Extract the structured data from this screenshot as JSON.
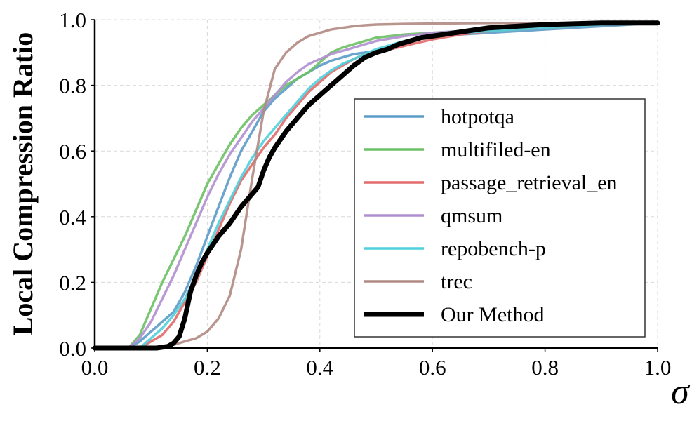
{
  "chart_data": {
    "type": "line",
    "title": "",
    "xlabel": "σ",
    "ylabel": "Local Compression Ratio",
    "xlim": [
      0.0,
      1.0
    ],
    "ylim": [
      0.0,
      1.0
    ],
    "xticks": [
      "0.0",
      "0.2",
      "0.4",
      "0.6",
      "0.8",
      "1.0"
    ],
    "yticks": [
      "0.0",
      "0.2",
      "0.4",
      "0.6",
      "0.8",
      "1.0"
    ],
    "grid": true,
    "legend_position": "center-right",
    "series": [
      {
        "name": "hotpotqa",
        "color": "#5b9bc8",
        "x": [
          0.0,
          0.06,
          0.08,
          0.1,
          0.12,
          0.14,
          0.16,
          0.18,
          0.2,
          0.22,
          0.24,
          0.26,
          0.28,
          0.3,
          0.32,
          0.34,
          0.36,
          0.38,
          0.4,
          0.42,
          0.44,
          0.46,
          0.48,
          0.5,
          0.55,
          0.6,
          0.65,
          0.7,
          0.75,
          0.8,
          0.9,
          1.0
        ],
        "y": [
          0.0,
          0.0,
          0.02,
          0.05,
          0.08,
          0.11,
          0.17,
          0.25,
          0.34,
          0.43,
          0.52,
          0.6,
          0.66,
          0.72,
          0.76,
          0.79,
          0.82,
          0.84,
          0.86,
          0.875,
          0.885,
          0.895,
          0.9,
          0.905,
          0.93,
          0.95,
          0.955,
          0.96,
          0.965,
          0.97,
          0.98,
          0.99
        ]
      },
      {
        "name": "multifiled-en",
        "color": "#6cc064",
        "x": [
          0.0,
          0.06,
          0.08,
          0.1,
          0.12,
          0.14,
          0.16,
          0.18,
          0.2,
          0.22,
          0.24,
          0.26,
          0.28,
          0.3,
          0.32,
          0.34,
          0.36,
          0.38,
          0.4,
          0.42,
          0.44,
          0.46,
          0.48,
          0.5,
          0.55,
          0.6,
          0.65,
          0.7,
          0.75,
          0.8,
          0.9,
          1.0
        ],
        "y": [
          0.0,
          0.0,
          0.04,
          0.12,
          0.2,
          0.27,
          0.34,
          0.42,
          0.5,
          0.56,
          0.62,
          0.67,
          0.71,
          0.74,
          0.77,
          0.8,
          0.82,
          0.84,
          0.87,
          0.9,
          0.915,
          0.925,
          0.935,
          0.945,
          0.955,
          0.96,
          0.965,
          0.97,
          0.975,
          0.98,
          0.985,
          0.99
        ]
      },
      {
        "name": "passage_retrieval_en",
        "color": "#e26a6a",
        "x": [
          0.0,
          0.08,
          0.1,
          0.12,
          0.14,
          0.16,
          0.18,
          0.2,
          0.22,
          0.24,
          0.26,
          0.28,
          0.3,
          0.32,
          0.34,
          0.36,
          0.38,
          0.4,
          0.42,
          0.44,
          0.46,
          0.48,
          0.5,
          0.55,
          0.6,
          0.65,
          0.7,
          0.75,
          0.8,
          0.9,
          1.0
        ],
        "y": [
          0.0,
          0.0,
          0.02,
          0.04,
          0.08,
          0.14,
          0.2,
          0.28,
          0.36,
          0.44,
          0.51,
          0.56,
          0.61,
          0.65,
          0.7,
          0.74,
          0.78,
          0.81,
          0.84,
          0.86,
          0.88,
          0.895,
          0.9,
          0.92,
          0.94,
          0.955,
          0.965,
          0.97,
          0.975,
          0.985,
          0.99
        ]
      },
      {
        "name": "qmsum",
        "color": "#b08fd0",
        "x": [
          0.0,
          0.06,
          0.08,
          0.1,
          0.12,
          0.14,
          0.16,
          0.18,
          0.2,
          0.22,
          0.24,
          0.26,
          0.28,
          0.3,
          0.32,
          0.34,
          0.36,
          0.38,
          0.4,
          0.42,
          0.44,
          0.46,
          0.48,
          0.5,
          0.55,
          0.6,
          0.65,
          0.7,
          0.75,
          0.8,
          0.9,
          1.0
        ],
        "y": [
          0.0,
          0.0,
          0.03,
          0.08,
          0.15,
          0.22,
          0.3,
          0.38,
          0.46,
          0.53,
          0.59,
          0.64,
          0.69,
          0.73,
          0.77,
          0.81,
          0.84,
          0.865,
          0.88,
          0.895,
          0.905,
          0.915,
          0.925,
          0.935,
          0.95,
          0.96,
          0.965,
          0.97,
          0.975,
          0.98,
          0.985,
          0.99
        ]
      },
      {
        "name": "repobench-p",
        "color": "#4fd0dc",
        "x": [
          0.0,
          0.08,
          0.1,
          0.12,
          0.14,
          0.16,
          0.18,
          0.2,
          0.22,
          0.24,
          0.26,
          0.28,
          0.3,
          0.32,
          0.34,
          0.36,
          0.38,
          0.4,
          0.42,
          0.44,
          0.46,
          0.48,
          0.5,
          0.55,
          0.6,
          0.65,
          0.7,
          0.75,
          0.8,
          0.9,
          1.0
        ],
        "y": [
          0.0,
          0.0,
          0.03,
          0.06,
          0.1,
          0.15,
          0.22,
          0.3,
          0.38,
          0.45,
          0.52,
          0.58,
          0.63,
          0.67,
          0.71,
          0.75,
          0.79,
          0.82,
          0.845,
          0.865,
          0.88,
          0.895,
          0.91,
          0.935,
          0.95,
          0.96,
          0.965,
          0.97,
          0.975,
          0.985,
          0.99
        ]
      },
      {
        "name": "trec",
        "color": "#b08a82",
        "x": [
          0.0,
          0.12,
          0.14,
          0.16,
          0.18,
          0.2,
          0.22,
          0.24,
          0.26,
          0.28,
          0.3,
          0.32,
          0.34,
          0.36,
          0.38,
          0.4,
          0.42,
          0.44,
          0.46,
          0.48,
          0.5,
          0.55,
          0.6,
          0.65,
          0.7,
          0.75,
          0.8,
          0.9,
          1.0
        ],
        "y": [
          0.0,
          0.0,
          0.01,
          0.02,
          0.03,
          0.05,
          0.09,
          0.16,
          0.3,
          0.52,
          0.72,
          0.85,
          0.9,
          0.93,
          0.95,
          0.96,
          0.97,
          0.975,
          0.98,
          0.983,
          0.985,
          0.987,
          0.988,
          0.989,
          0.99,
          0.99,
          0.99,
          0.99,
          0.99
        ]
      },
      {
        "name": "Our Method",
        "color": "#000000",
        "x": [
          0.0,
          0.11,
          0.13,
          0.14,
          0.15,
          0.16,
          0.17,
          0.18,
          0.19,
          0.2,
          0.22,
          0.24,
          0.26,
          0.28,
          0.29,
          0.3,
          0.31,
          0.32,
          0.34,
          0.36,
          0.38,
          0.4,
          0.42,
          0.44,
          0.46,
          0.48,
          0.5,
          0.52,
          0.54,
          0.56,
          0.58,
          0.6,
          0.62,
          0.64,
          0.66,
          0.68,
          0.7,
          0.75,
          0.8,
          0.9,
          1.0
        ],
        "y": [
          0.0,
          0.0,
          0.005,
          0.015,
          0.035,
          0.09,
          0.17,
          0.22,
          0.26,
          0.29,
          0.34,
          0.38,
          0.43,
          0.47,
          0.49,
          0.54,
          0.58,
          0.61,
          0.66,
          0.7,
          0.74,
          0.77,
          0.8,
          0.83,
          0.86,
          0.885,
          0.9,
          0.91,
          0.925,
          0.935,
          0.945,
          0.95,
          0.955,
          0.96,
          0.965,
          0.97,
          0.975,
          0.98,
          0.985,
          0.99,
          0.99
        ]
      }
    ]
  }
}
